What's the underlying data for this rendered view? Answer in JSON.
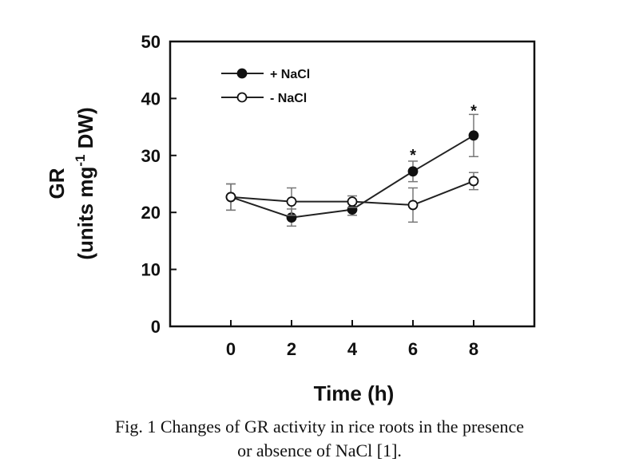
{
  "chart_data": {
    "type": "line",
    "title": "",
    "xlabel": "Time (h)",
    "ylabel_line1": "GR",
    "ylabel_line2_prefix": "(units mg",
    "ylabel_sup": "-1",
    "ylabel_line2_suffix": " DW)",
    "x": [
      0,
      2,
      4,
      6,
      8
    ],
    "xlim": [
      -2,
      10
    ],
    "xticks": [
      0,
      2,
      4,
      6,
      8
    ],
    "ylim": [
      0,
      50
    ],
    "yticks": [
      0,
      10,
      20,
      30,
      40,
      50
    ],
    "grid": false,
    "legend_position": "top-left",
    "series": [
      {
        "name": "+ NaCl",
        "marker": "filled-circle",
        "values": [
          22.7,
          19.1,
          20.5,
          27.2,
          33.5
        ],
        "errors": [
          2.3,
          1.5,
          1.0,
          1.8,
          3.7
        ]
      },
      {
        "name": "- NaCl",
        "marker": "open-circle",
        "values": [
          22.7,
          21.9,
          21.9,
          21.3,
          25.5
        ],
        "errors": [
          2.3,
          2.4,
          1.0,
          3.0,
          1.5
        ]
      }
    ],
    "annotations": [
      {
        "text": "*",
        "x": 6,
        "y": 30.5
      },
      {
        "text": "*",
        "x": 8,
        "y": 38.3
      }
    ]
  },
  "caption": {
    "line1": "Fig. 1 Changes of GR activity in rice roots in the presence",
    "line2": "or absence of NaCl [1]."
  }
}
